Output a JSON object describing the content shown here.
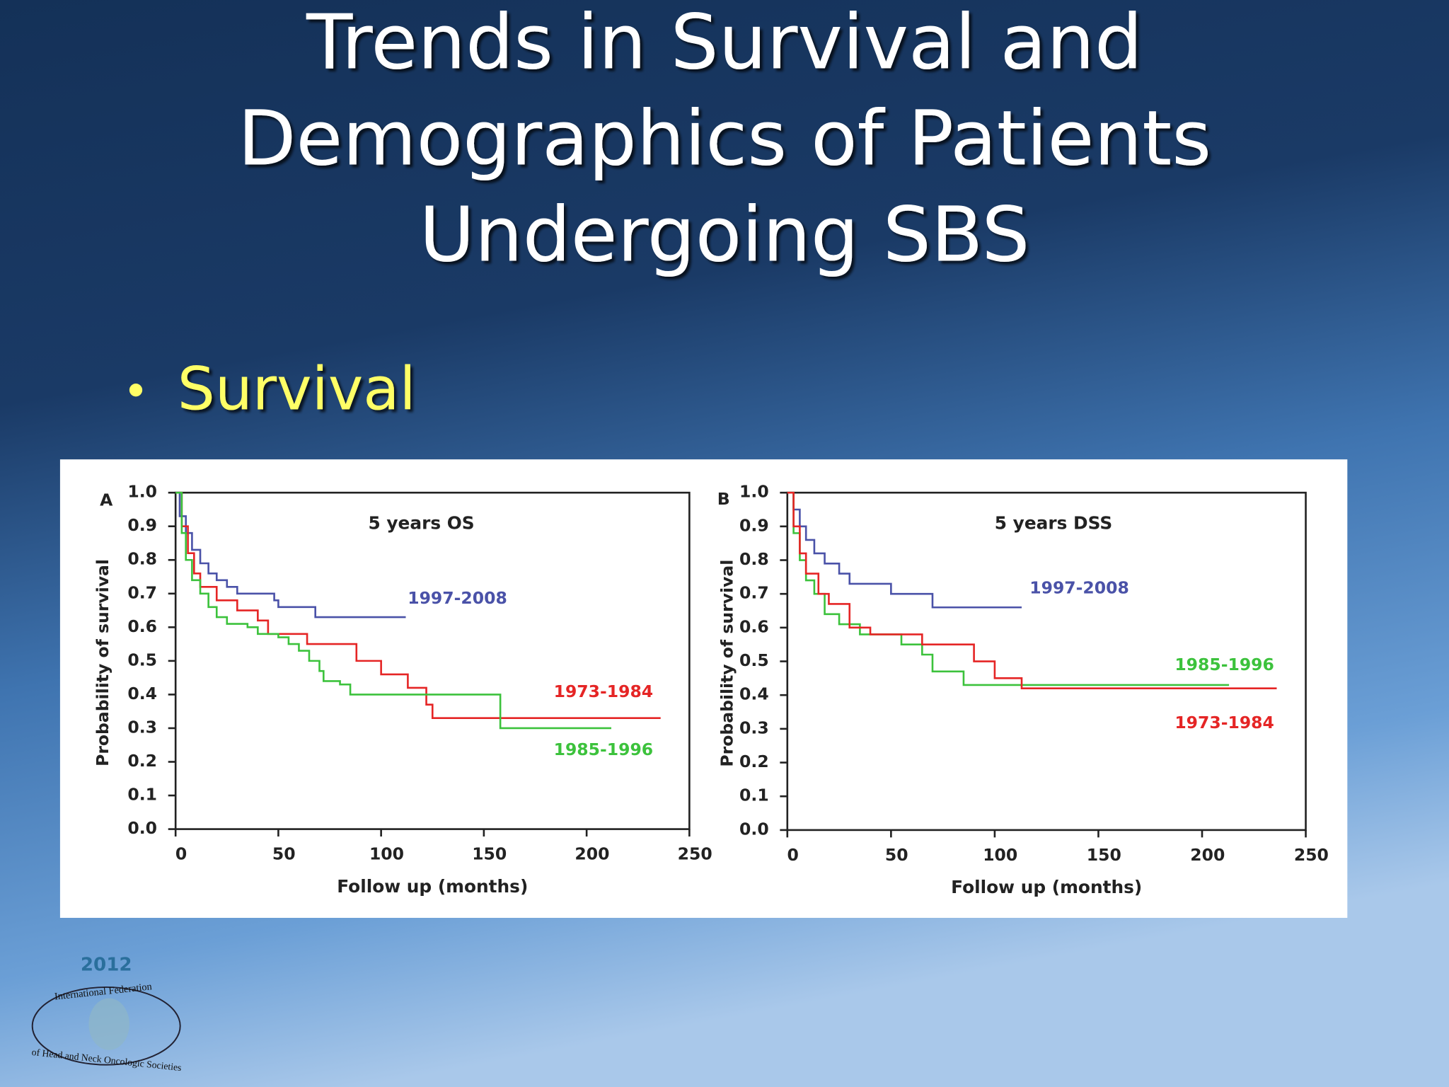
{
  "title": [
    "Trends in Survival and",
    "Demographics of Patients",
    "Undergoing SBS"
  ],
  "bullet": "Survival",
  "logo": {
    "year": "2012",
    "top": "International Federation",
    "bottom": "of Head and Neck Oncologic Societies"
  },
  "chart_data": [
    {
      "type": "line",
      "step": true,
      "panel": "A",
      "title": "5 years OS",
      "x_label": "Follow up (months)",
      "y_label": "Probability of survival",
      "xlim": [
        0,
        250
      ],
      "xticks": [
        0,
        50,
        100,
        150,
        200,
        250
      ],
      "ylim": [
        0,
        1
      ],
      "yticks": [
        {
          "value": 0,
          "label": "0.0"
        },
        0.1,
        0.2,
        0.3,
        0.4,
        0.5,
        0.6,
        0.7,
        0.8,
        0.9,
        {
          "value": 1,
          "label": "1.0"
        }
      ],
      "series": [
        {
          "name": "1997-2008",
          "color": "#4a52a8",
          "x": [
            0,
            2,
            5,
            8,
            12,
            16,
            20,
            25,
            30,
            48,
            50,
            68,
            112
          ],
          "values": [
            1.0,
            0.93,
            0.88,
            0.83,
            0.79,
            0.76,
            0.74,
            0.72,
            0.7,
            0.68,
            0.66,
            0.63,
            0.63
          ]
        },
        {
          "name": "1973-1984",
          "color": "#e52525",
          "x": [
            0,
            3,
            6,
            9,
            12,
            20,
            30,
            40,
            45,
            64,
            88,
            100,
            113,
            122,
            125,
            236
          ],
          "values": [
            1.0,
            0.9,
            0.82,
            0.76,
            0.72,
            0.68,
            0.65,
            0.62,
            0.58,
            0.55,
            0.5,
            0.46,
            0.42,
            0.37,
            0.33,
            0.33
          ]
        },
        {
          "name": "1985-1996",
          "color": "#3cc23c",
          "x": [
            0,
            3,
            5,
            8,
            12,
            16,
            20,
            25,
            35,
            40,
            50,
            55,
            60,
            65,
            70,
            72,
            80,
            85,
            155,
            158,
            212
          ],
          "values": [
            1.0,
            0.88,
            0.8,
            0.74,
            0.7,
            0.66,
            0.63,
            0.61,
            0.6,
            0.58,
            0.57,
            0.55,
            0.53,
            0.5,
            0.47,
            0.44,
            0.43,
            0.4,
            0.4,
            0.3,
            0.3
          ]
        }
      ]
    },
    {
      "type": "line",
      "step": true,
      "panel": "B",
      "title": "5 years DSS",
      "x_label": "Follow up (months)",
      "y_label": "Probability of survival",
      "xlim": [
        0,
        250
      ],
      "xticks": [
        0,
        50,
        100,
        150,
        200,
        250
      ],
      "ylim": [
        0,
        1
      ],
      "yticks": [
        {
          "value": 0,
          "label": "0.0"
        },
        0.1,
        0.2,
        0.3,
        0.4,
        0.5,
        0.6,
        0.7,
        0.8,
        0.9,
        {
          "value": 1,
          "label": "1.0"
        }
      ],
      "series": [
        {
          "name": "1997-2008",
          "color": "#4a52a8",
          "x": [
            0,
            3,
            6,
            9,
            13,
            18,
            25,
            30,
            50,
            70,
            113
          ],
          "values": [
            1.0,
            0.95,
            0.9,
            0.86,
            0.82,
            0.79,
            0.76,
            0.73,
            0.7,
            0.66,
            0.66
          ]
        },
        {
          "name": "1985-1996",
          "color": "#3cc23c",
          "x": [
            0,
            3,
            6,
            9,
            13,
            18,
            25,
            35,
            55,
            65,
            70,
            85,
            213
          ],
          "values": [
            1.0,
            0.88,
            0.8,
            0.74,
            0.7,
            0.64,
            0.61,
            0.58,
            0.55,
            0.52,
            0.47,
            0.43,
            0.43
          ]
        },
        {
          "name": "1973-1984",
          "color": "#e52525",
          "x": [
            0,
            3,
            6,
            9,
            15,
            20,
            30,
            40,
            65,
            90,
            100,
            113,
            236
          ],
          "values": [
            1.0,
            0.9,
            0.82,
            0.76,
            0.7,
            0.67,
            0.6,
            0.58,
            0.55,
            0.5,
            0.45,
            0.42,
            0.42
          ]
        }
      ]
    }
  ]
}
